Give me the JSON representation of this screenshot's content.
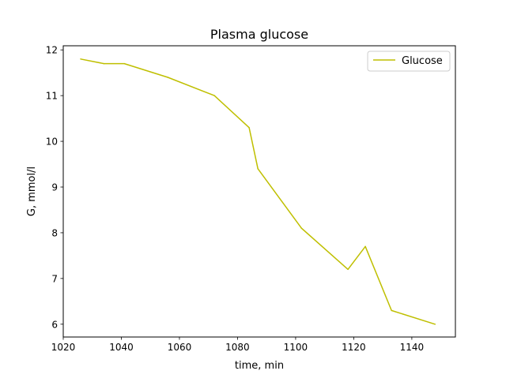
{
  "chart_data": {
    "type": "line",
    "title": "Plasma glucose",
    "xlabel": "time, min",
    "ylabel": "G, mmol/l",
    "xlim": [
      1020,
      1155
    ],
    "ylim": [
      5.72,
      12.09
    ],
    "xticks": [
      1020,
      1040,
      1060,
      1080,
      1100,
      1120,
      1140
    ],
    "yticks": [
      6,
      7,
      8,
      9,
      10,
      11,
      12
    ],
    "grid": false,
    "legend_position": "top-right",
    "series": [
      {
        "name": "Glucose",
        "color": "#bfbf00",
        "x": [
          1026,
          1034,
          1041,
          1056,
          1072,
          1084,
          1087,
          1102,
          1118,
          1124,
          1133,
          1148
        ],
        "y": [
          11.8,
          11.7,
          11.7,
          11.4,
          11.0,
          10.3,
          9.4,
          8.1,
          7.2,
          7.7,
          6.3,
          6.0
        ]
      }
    ]
  }
}
